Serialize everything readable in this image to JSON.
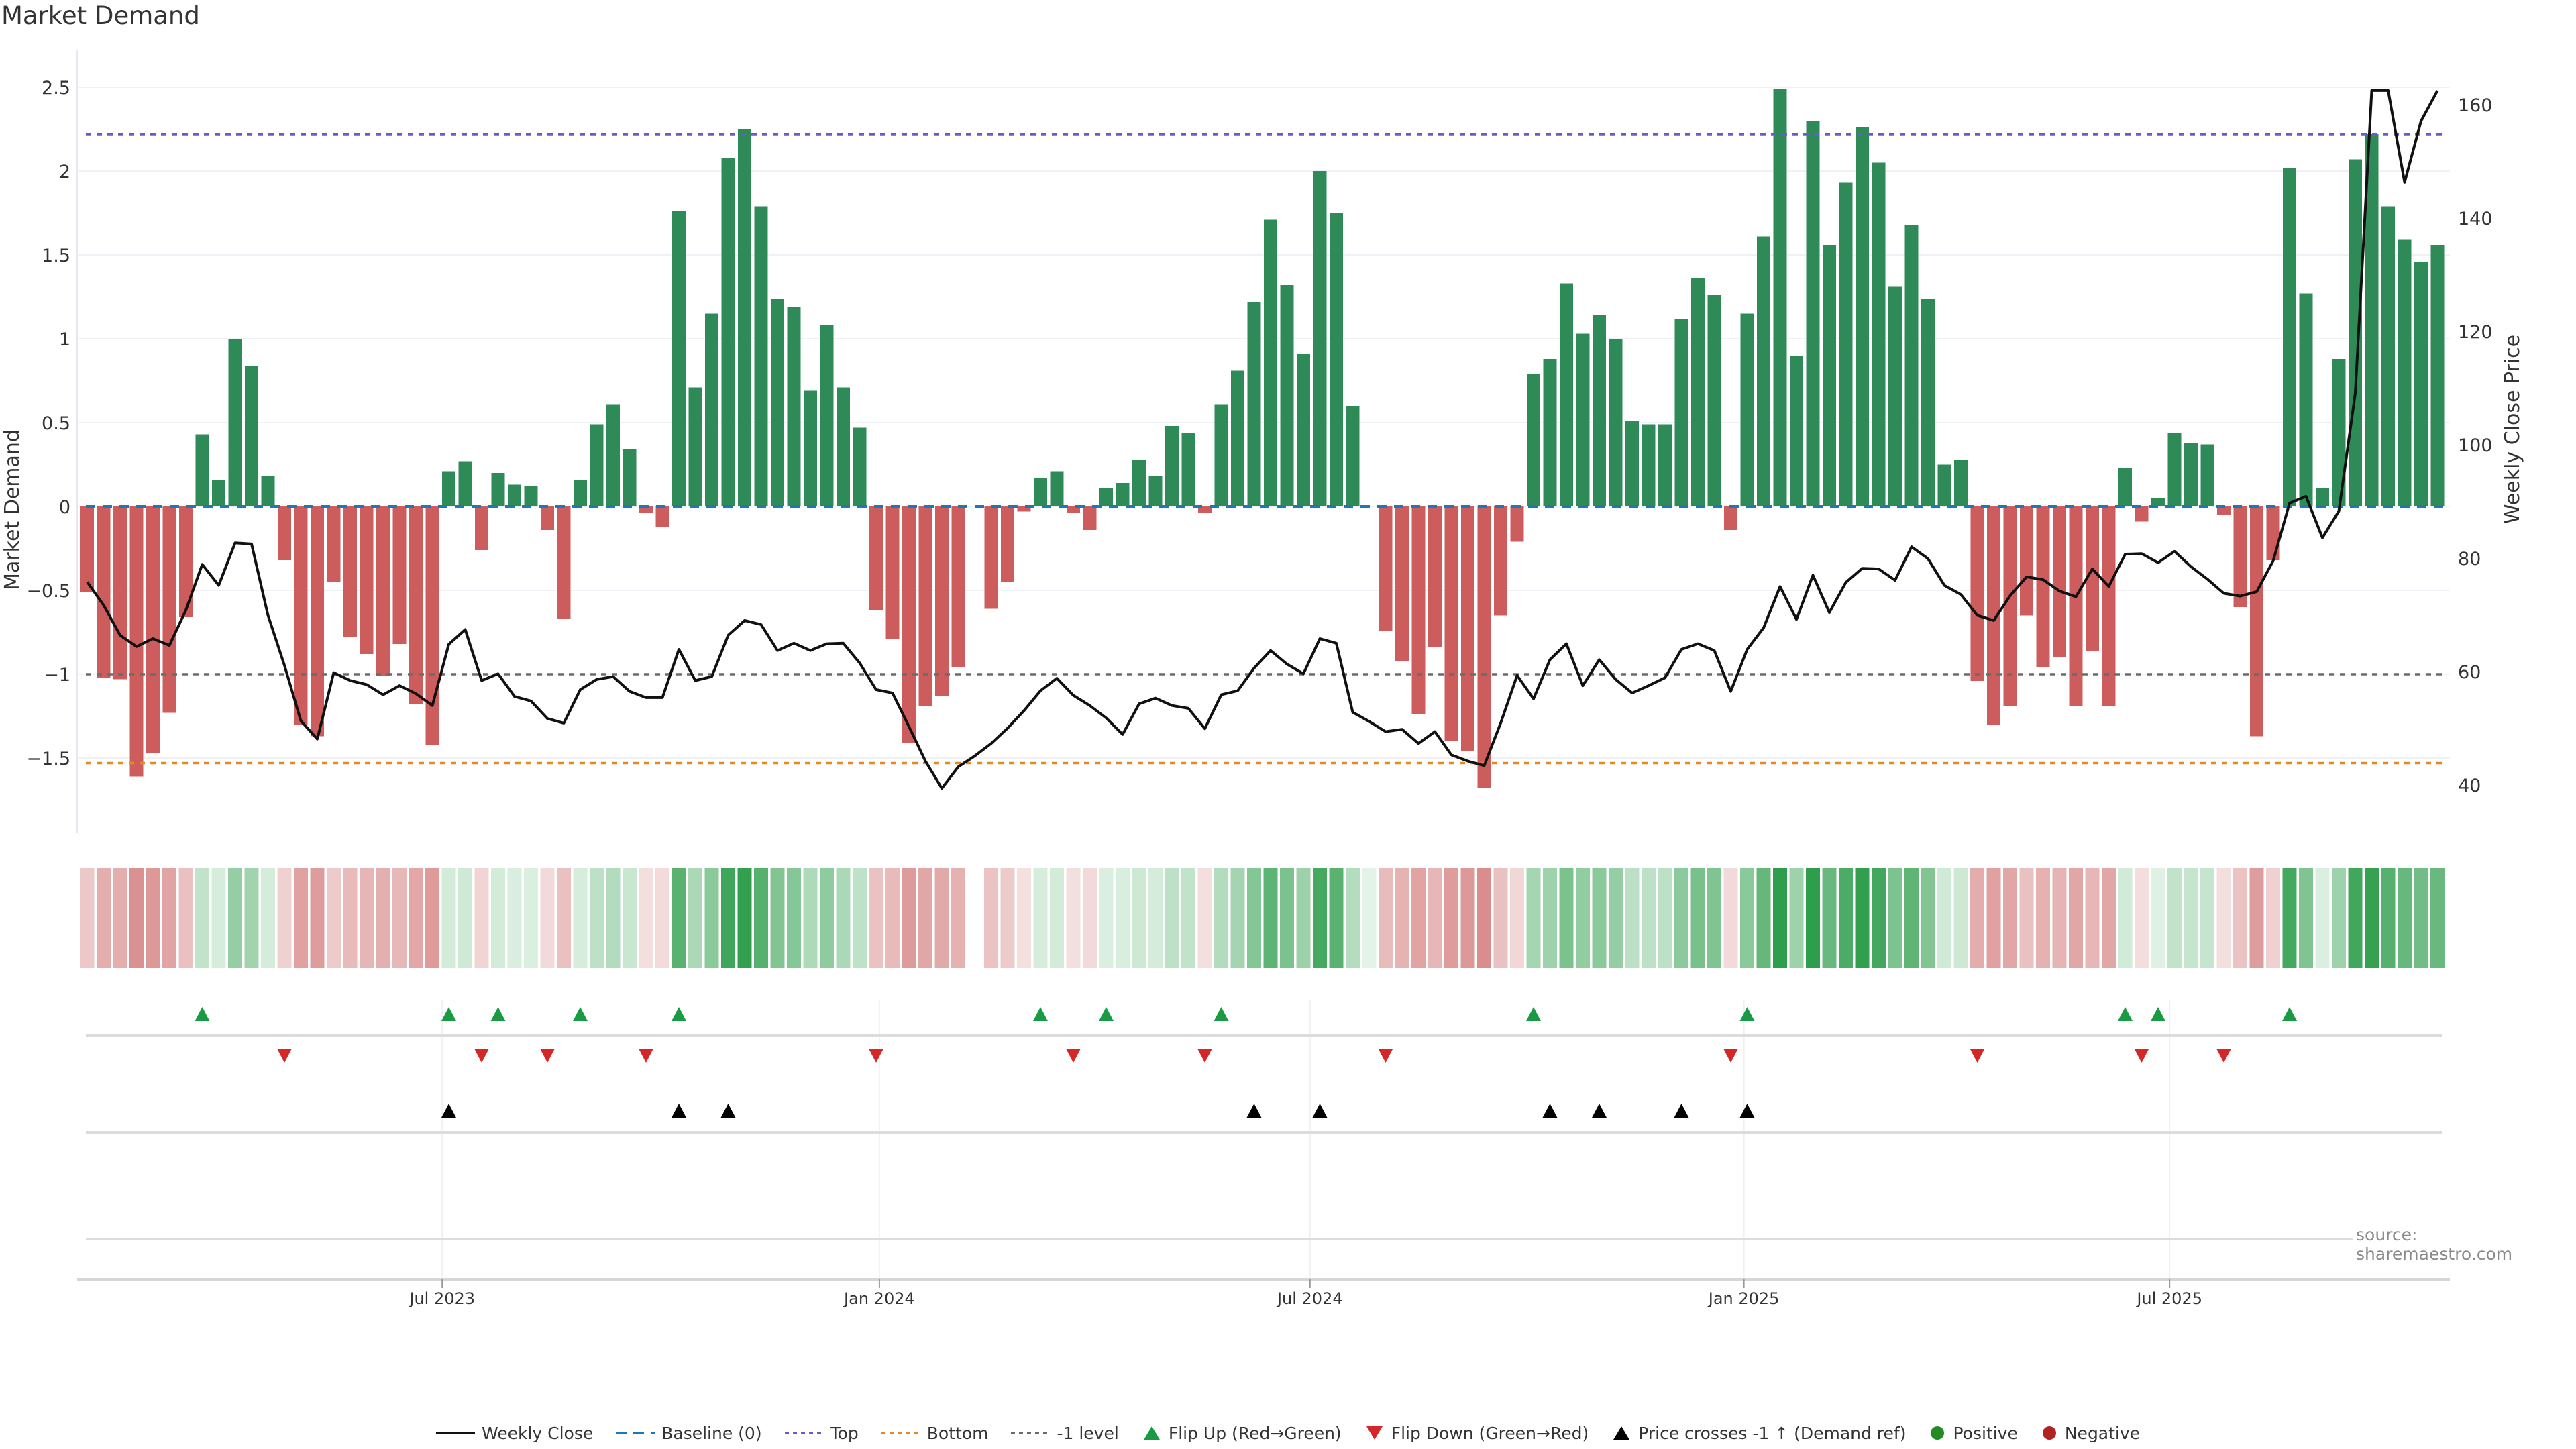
{
  "chart_data": {
    "type": "bar",
    "title": "Market Demand",
    "ylabel": "Market Demand",
    "ylabel_right": "Weekly Close Price",
    "xlabel": "",
    "ylim": [
      -1.95,
      2.72
    ],
    "ylim_right": [
      31.7,
      169.6
    ],
    "grid": true,
    "legend_position": "bottom-center",
    "source": "source: sharemaestro.com",
    "y_ticks": [
      {
        "value": 2.5,
        "label": "2.5"
      },
      {
        "value": 2,
        "label": "2"
      },
      {
        "value": 1.5,
        "label": "1.5"
      },
      {
        "value": 1,
        "label": "1"
      },
      {
        "value": 0.5,
        "label": "0.5"
      },
      {
        "value": 0,
        "label": "0"
      },
      {
        "value": -0.5,
        "label": "−0.5"
      },
      {
        "value": -1,
        "label": "−1"
      },
      {
        "value": -1.5,
        "label": "−1.5"
      }
    ],
    "y_ticks_right": [
      {
        "value": 40,
        "label": "40"
      },
      {
        "value": 60,
        "label": "60"
      },
      {
        "value": 80,
        "label": "80"
      },
      {
        "value": 100,
        "label": "100"
      },
      {
        "value": 120,
        "label": "120"
      },
      {
        "value": 140,
        "label": "140"
      },
      {
        "value": 160,
        "label": "160"
      }
    ],
    "x_ticks": [
      {
        "week_index": 21.6,
        "label": "Jul 2023"
      },
      {
        "week_index": 48.2,
        "label": "Jan 2024"
      },
      {
        "week_index": 74.4,
        "label": "Jul 2024"
      },
      {
        "week_index": 100.8,
        "label": "Jan 2025"
      },
      {
        "week_index": 126.7,
        "label": "Jul 2025"
      }
    ],
    "reference_lines": {
      "baseline": 0,
      "top": 2.22,
      "bottom": -1.53,
      "minus_one_level": -1
    },
    "series": [
      {
        "name": "Market Demand",
        "type": "bar",
        "values": [
          -0.51,
          -1.02,
          -1.03,
          -1.61,
          -1.47,
          -1.23,
          -0.66,
          0.43,
          0.16,
          1.0,
          0.84,
          0.18,
          -0.32,
          -1.3,
          -1.37,
          -0.45,
          -0.78,
          -0.88,
          -1.01,
          -0.82,
          -1.18,
          -1.42,
          0.21,
          0.27,
          -0.26,
          0.2,
          0.13,
          0.12,
          -0.14,
          -0.67,
          0.16,
          0.49,
          0.61,
          0.34,
          -0.04,
          -0.12,
          1.76,
          0.71,
          1.15,
          2.08,
          2.25,
          1.79,
          1.24,
          1.19,
          0.69,
          1.08,
          0.71,
          0.47,
          -0.62,
          -0.79,
          -1.41,
          -1.19,
          -1.13,
          -0.96,
          null,
          -0.61,
          -0.45,
          -0.03,
          0.17,
          0.21,
          -0.04,
          -0.14,
          0.11,
          0.14,
          0.28,
          0.18,
          0.48,
          0.44,
          -0.04,
          0.61,
          0.81,
          1.22,
          1.71,
          1.32,
          0.91,
          2.0,
          1.75,
          0.6,
          0.0,
          -0.74,
          -0.92,
          -1.24,
          -0.84,
          -1.4,
          -1.46,
          -1.68,
          -0.65,
          -0.21,
          0.79,
          0.88,
          1.33,
          1.03,
          1.14,
          1.0,
          0.51,
          0.49,
          0.49,
          1.12,
          1.36,
          1.26,
          -0.14,
          1.15,
          1.61,
          2.49,
          0.9,
          2.3,
          1.56,
          1.93,
          2.26,
          2.05,
          1.31,
          1.68,
          1.24,
          0.25,
          0.28,
          -1.04,
          -1.3,
          -1.19,
          -0.65,
          -0.96,
          -0.9,
          -1.19,
          -0.86,
          -1.19,
          0.23,
          -0.09,
          0.05,
          0.44,
          0.38,
          0.37,
          -0.05,
          -0.6,
          -1.37,
          -0.32,
          2.02,
          1.27,
          0.11,
          0.88,
          2.07,
          2.22,
          1.79,
          1.59,
          1.46,
          1.56
        ]
      },
      {
        "name": "Weekly Close",
        "type": "line",
        "axis": "right",
        "values": [
          75.8,
          71.7,
          66.4,
          64.4,
          65.8,
          64.6,
          70.8,
          78.9,
          75.2,
          82.7,
          82.5,
          69.9,
          61.1,
          51.3,
          48.1,
          59.8,
          58.4,
          57.7,
          55.9,
          57.5,
          56.1,
          54.0,
          64.8,
          67.4,
          58.4,
          59.6,
          55.6,
          54.8,
          51.7,
          50.9,
          56.8,
          58.6,
          59.1,
          56.5,
          55.4,
          55.4,
          63.9,
          58.4,
          59.1,
          66.4,
          69.0,
          68.3,
          63.7,
          65.0,
          63.7,
          64.9,
          65.0,
          61.5,
          56.8,
          56.2,
          50.3,
          44.2,
          39.4,
          43.2,
          45.1,
          47.3,
          50.0,
          53.1,
          56.6,
          58.8,
          55.8,
          54.0,
          51.8,
          48.9,
          54.3,
          55.3,
          54.0,
          53.5,
          49.9,
          55.9,
          56.6,
          60.6,
          63.7,
          61.3,
          59.6,
          65.8,
          65.0,
          52.8,
          51.2,
          49.4,
          49.8,
          47.3,
          49.4,
          45.3,
          44.2,
          43.4,
          50.9,
          59.3,
          55.2,
          62.1,
          64.9,
          57.5,
          62.1,
          58.6,
          56.2,
          57.5,
          58.9,
          63.9,
          64.9,
          63.7,
          56.5,
          63.9,
          67.7,
          75.0,
          69.2,
          77.0,
          70.4,
          75.7,
          78.2,
          78.1,
          76.1,
          82.0,
          79.9,
          75.2,
          73.6,
          69.9,
          69.0,
          73.4,
          76.7,
          76.2,
          74.2,
          73.2,
          78.1,
          75.0,
          80.7,
          80.8,
          79.2,
          81.2,
          78.5,
          76.3,
          73.8,
          73.3,
          74.1,
          79.5,
          89.7,
          90.9,
          83.6,
          88.3,
          109.1,
          162.5,
          162.5,
          146.3,
          157.1,
          163.5
        ]
      }
    ],
    "markers": {
      "flip_up": [
        7,
        22,
        25,
        30,
        36,
        58,
        62,
        69,
        88,
        101,
        124,
        126,
        134
      ],
      "flip_down": [
        12,
        24,
        28,
        34,
        48,
        60,
        68,
        79,
        100,
        115,
        125,
        130
      ],
      "price_cross_up": [
        22,
        36,
        39,
        71,
        75,
        89,
        92,
        97,
        101
      ]
    },
    "colors": {
      "positive_bar": "#2e8b57",
      "negative_bar": "#cd5c5c",
      "price_line": "#111111",
      "baseline": "#1f77b4",
      "top": "#6a5acd",
      "bottom": "#e8891e",
      "minus_one": "#6b6b6b",
      "flip_up": "#1a9a45",
      "flip_down": "#d62728",
      "price_cross": "#000000",
      "positive_dot": "#228b22",
      "negative_dot": "#b22222",
      "heat_pos_light": "#e3f3e7",
      "heat_pos_dark": "#2f9e4c",
      "heat_neg_light": "#f5e1e1",
      "heat_neg_dark": "#cf6f6e"
    },
    "legend": [
      {
        "key": "weekly_close",
        "label": "Weekly Close",
        "icon": "solid-line"
      },
      {
        "key": "baseline",
        "label": "Baseline (0)",
        "icon": "dashed-line"
      },
      {
        "key": "top",
        "label": "Top",
        "icon": "dotted-line"
      },
      {
        "key": "bottom",
        "label": "Bottom",
        "icon": "dotted-line"
      },
      {
        "key": "minus_one",
        "label": "-1 level",
        "icon": "dotted-line"
      },
      {
        "key": "flip_up",
        "label": "Flip Up (Red→Green)",
        "icon": "triangle-up"
      },
      {
        "key": "flip_down",
        "label": "Flip Down (Green→Red)",
        "icon": "triangle-down"
      },
      {
        "key": "price_cross",
        "label": "Price crosses -1 ↑ (Demand ref)",
        "icon": "triangle-up"
      },
      {
        "key": "positive",
        "label": "Positive",
        "icon": "circle"
      },
      {
        "key": "negative",
        "label": "Negative",
        "icon": "circle"
      }
    ]
  }
}
